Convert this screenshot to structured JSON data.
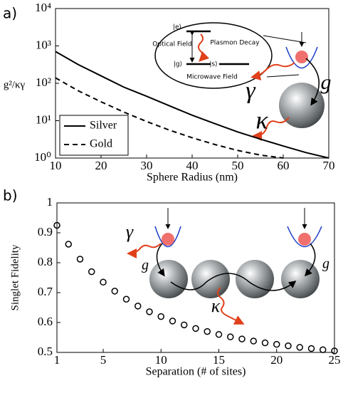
{
  "chart_data": [
    {
      "type": "line",
      "panel_label": "a)",
      "xlabel": "Sphere Radius (nm)",
      "ylabel": "g²/κγ",
      "x": [
        10,
        15,
        20,
        25,
        30,
        35,
        40,
        45,
        50,
        55,
        60,
        65,
        70
      ],
      "series": [
        {
          "name": "Silver",
          "color": "#000000",
          "dash": "solid",
          "values": [
            708,
            316,
            158,
            79,
            45,
            25,
            14,
            8.3,
            5,
            3.2,
            2.1,
            1.4,
            1
          ]
        },
        {
          "name": "Gold",
          "color": "#000000",
          "dash": "dashed",
          "values": [
            140,
            63,
            32,
            17,
            9.5,
            5.6,
            3.5,
            2.3,
            1.6,
            1.2,
            1.0,
            null,
            null
          ]
        }
      ],
      "xlim": [
        10,
        70
      ],
      "xticks": [
        10,
        20,
        30,
        40,
        50,
        60,
        70
      ],
      "ylim": [
        1,
        10000
      ],
      "log_y": true,
      "yticks": [
        {
          "value": 1,
          "label": "10⁰"
        },
        {
          "value": 10,
          "label": "10¹"
        },
        {
          "value": 100,
          "label": "10²"
        },
        {
          "value": 1000,
          "label": "10³"
        },
        {
          "value": 10000,
          "label": "10⁴"
        }
      ],
      "legend": "lower left",
      "annotations": [
        "|e⟩",
        "|g⟩",
        "|s⟩",
        "Optical Field",
        "Plasmon Decay",
        "Microwave Field",
        "γ",
        "κ",
        "g"
      ]
    },
    {
      "type": "scatter",
      "panel_label": "b)",
      "xlabel": "Separation (# of sites)",
      "ylabel": "Singlet Fidelity",
      "x": [
        1,
        2,
        3,
        4,
        5,
        6,
        7,
        8,
        9,
        10,
        11,
        12,
        13,
        14,
        15,
        16,
        17,
        18,
        19,
        20,
        21,
        22,
        23,
        24,
        25
      ],
      "values": [
        0.925,
        0.862,
        0.812,
        0.77,
        0.735,
        0.705,
        0.678,
        0.655,
        0.636,
        0.62,
        0.605,
        0.592,
        0.58,
        0.57,
        0.56,
        0.552,
        0.545,
        0.538,
        0.532,
        0.527,
        0.522,
        0.517,
        0.513,
        0.509,
        0.505
      ],
      "color": "#000000",
      "xlim": [
        1,
        25
      ],
      "xticks": [
        1,
        5,
        10,
        15,
        20,
        25
      ],
      "ylim": [
        0.5,
        1
      ],
      "yticks": [
        0.5,
        0.6,
        0.7,
        0.8,
        0.9,
        1
      ],
      "annotations": [
        "γ",
        "g",
        "κ",
        "g"
      ]
    }
  ]
}
